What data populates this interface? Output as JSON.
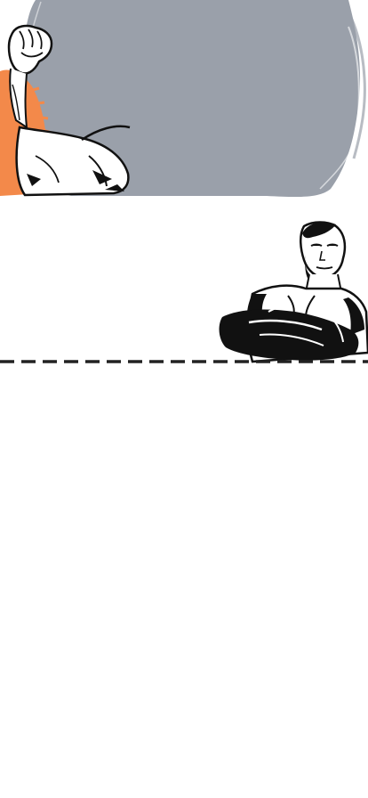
{
  "screen": {
    "background_color": "#ffffff"
  },
  "decor": {
    "brush_blob": {
      "icon": "gray-brush-stroke-blob",
      "color": "#9aa0aa"
    },
    "flex_arm": {
      "icon": "flexed-bicep-arm-illustration",
      "accent_color": "#f3894a",
      "ink_color": "#111111"
    },
    "bodybuilder": {
      "icon": "arms-crossed-bodybuilder-illustration",
      "ink_color": "#111111"
    },
    "divider": {
      "icon": "dashed-line",
      "color": "#222222"
    }
  }
}
